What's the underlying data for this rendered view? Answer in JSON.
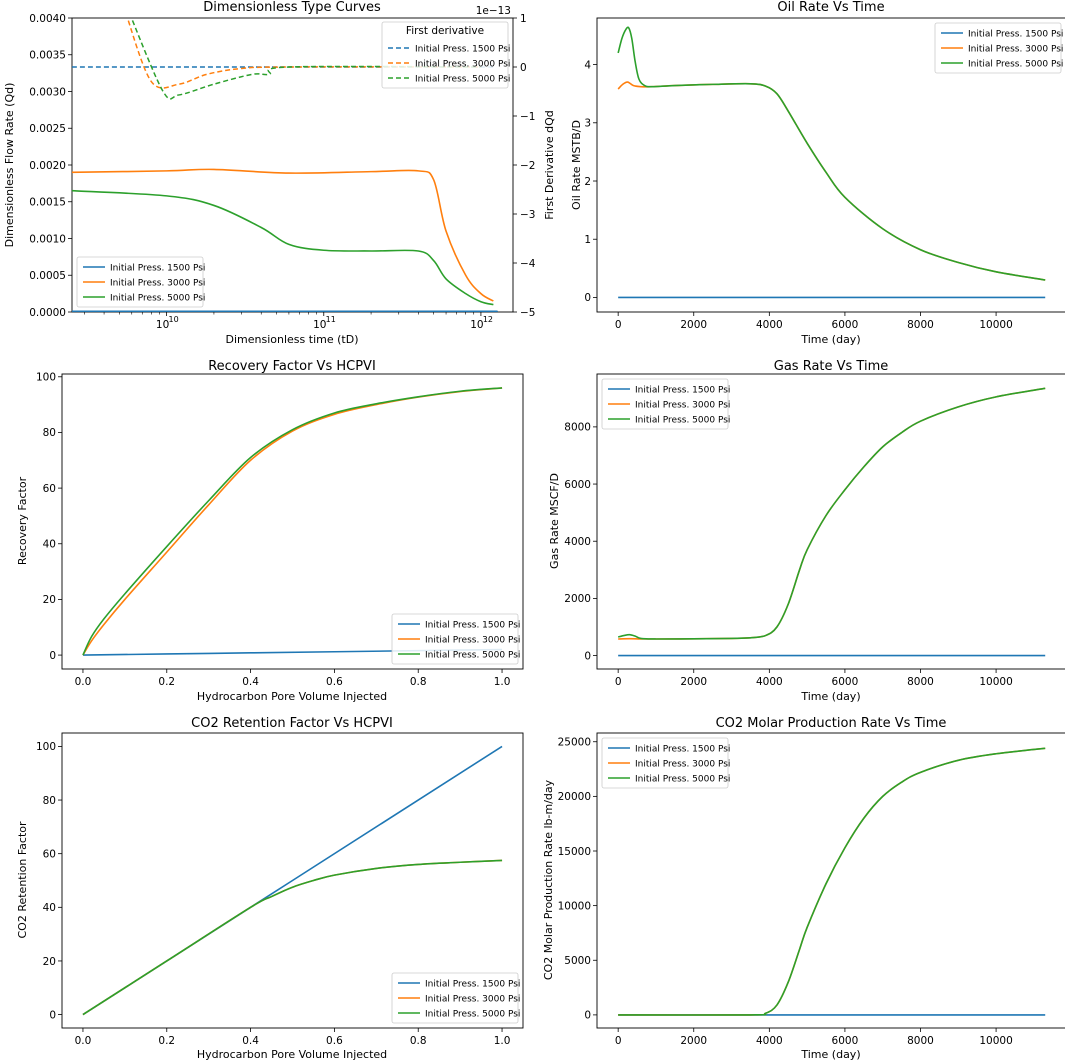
{
  "colors": {
    "p1500": "#1f77b4",
    "p3000": "#ff7f0e",
    "p5000": "#2ca02c"
  },
  "chart_data": [
    {
      "id": "type-curves",
      "type": "line",
      "title": "Dimensionless Type Curves",
      "xlabel": "Dimensionless time (tD)",
      "ylabel": "Dimensionless Flow Rate (Qd)",
      "y2label": "First Derivative dQd",
      "xscale": "log",
      "xlim": [
        2500000000,
        1600000000000
      ],
      "ylim": [
        0,
        0.004
      ],
      "y2lim": [
        -5,
        1
      ],
      "y2_offset": "1e−13",
      "xticks": [
        10000000000,
        100000000000,
        1000000000000
      ],
      "xtick_labels": [
        "10^10",
        "10^11",
        "10^12"
      ],
      "yticks": [
        0,
        0.0005,
        0.001,
        0.0015,
        0.002,
        0.0025,
        0.003,
        0.0035,
        0.004
      ],
      "ytick_labels": [
        "0.0000",
        "0.0005",
        "0.0010",
        "0.0015",
        "0.0020",
        "0.0025",
        "0.0030",
        "0.0035",
        "0.0040"
      ],
      "y2ticks": [
        -5,
        -4,
        -3,
        -2,
        -1,
        0,
        1
      ],
      "y2tick_labels": [
        "−5",
        "−4",
        "−3",
        "−2",
        "−1",
        "0",
        "1"
      ],
      "series": [
        {
          "name": "Initial Press. 1500 Psi",
          "color_key": "p1500",
          "axis": "left",
          "x": [
            2500000000,
            10000000000,
            100000000000,
            1000000000000,
            1200000000000
          ],
          "y": [
            1e-05,
            1e-05,
            1e-05,
            1e-05,
            1e-05
          ]
        },
        {
          "name": "Initial Press. 3000 Psi",
          "color_key": "p3000",
          "axis": "left",
          "x": [
            2500000000,
            10000000000,
            20000000000,
            60000000000,
            200000000000,
            400000000000,
            500000000000,
            600000000000,
            800000000000,
            1000000000000,
            1200000000000
          ],
          "y": [
            0.0019,
            0.00192,
            0.00194,
            0.00189,
            0.00191,
            0.00192,
            0.0018,
            0.0011,
            0.0005,
            0.00025,
            0.00015
          ]
        },
        {
          "name": "Initial Press. 5000 Psi",
          "color_key": "p5000",
          "axis": "left",
          "x": [
            2500000000,
            10000000000,
            20000000000,
            40000000000,
            60000000000,
            100000000000,
            200000000000,
            400000000000,
            500000000000,
            600000000000,
            800000000000,
            1000000000000,
            1200000000000
          ],
          "y": [
            0.00165,
            0.00158,
            0.00145,
            0.00115,
            0.00092,
            0.00084,
            0.00083,
            0.00083,
            0.0007,
            0.00045,
            0.00025,
            0.00014,
            0.0001
          ]
        }
      ],
      "derivative_series": [
        {
          "name": "Initial Press. 1500 Psi",
          "color_key": "p1500",
          "axis": "right",
          "x": [
            2500000000,
            1200000000000
          ],
          "y": [
            0,
            0
          ]
        },
        {
          "name": "Initial Press. 3000 Psi",
          "color_key": "p3000",
          "axis": "right",
          "x": [
            5500000000,
            8000000000,
            12000000000,
            18000000000,
            30000000000,
            60000000000,
            1000000000000
          ],
          "y": [
            1.1,
            -0.3,
            -0.35,
            -0.15,
            -0.03,
            0,
            0
          ]
        },
        {
          "name": "Initial Press. 5000 Psi",
          "color_key": "p5000",
          "axis": "right",
          "x": [
            5800000000,
            9500000000,
            12000000000,
            20000000000,
            35000000000,
            45000000000,
            60000000000,
            1000000000000
          ],
          "y": [
            1.1,
            -0.5,
            -0.57,
            -0.35,
            -0.15,
            -0.15,
            0,
            0
          ]
        }
      ],
      "legend": {
        "location": "lower-left",
        "entries": [
          "Initial Press. 1500 Psi",
          "Initial Press. 3000 Psi",
          "Initial Press. 5000 Psi"
        ]
      },
      "legend2": {
        "title": "First derivative",
        "location": "upper-right",
        "entries": [
          "Initial Press. 1500 Psi",
          "Initial Press. 3000 Psi",
          "Initial Press. 5000 Psi"
        ]
      }
    },
    {
      "id": "oil-rate",
      "type": "line",
      "title": "Oil Rate Vs Time",
      "xlabel": "Time (day)",
      "ylabel": "Oil Rate MSTB/D",
      "xlim": [
        -560,
        11850
      ],
      "ylim": [
        -0.25,
        4.8
      ],
      "xticks": [
        0,
        2000,
        4000,
        6000,
        8000,
        10000
      ],
      "xtick_labels": [
        "0",
        "2000",
        "4000",
        "6000",
        "8000",
        "10000"
      ],
      "yticks": [
        0,
        1,
        2,
        3,
        4
      ],
      "ytick_labels": [
        "0",
        "1",
        "2",
        "3",
        "4"
      ],
      "series": [
        {
          "name": "Initial Press. 1500 Psi",
          "color_key": "p1500",
          "x": [
            0,
            11300
          ],
          "y": [
            0,
            0
          ]
        },
        {
          "name": "Initial Press. 3000 Psi",
          "color_key": "p3000",
          "x": [
            0,
            120,
            250,
            400,
            600,
            900,
            1500,
            2500,
            3500,
            3900,
            4200,
            4500,
            5000,
            5500,
            6000,
            7000,
            8000,
            9000,
            10000,
            11300
          ],
          "y": [
            3.58,
            3.66,
            3.7,
            3.64,
            3.62,
            3.62,
            3.64,
            3.66,
            3.67,
            3.63,
            3.5,
            3.2,
            2.65,
            2.15,
            1.72,
            1.18,
            0.82,
            0.6,
            0.44,
            0.3
          ]
        },
        {
          "name": "Initial Press. 5000 Psi",
          "color_key": "p5000",
          "x": [
            0,
            100,
            200,
            280,
            360,
            450,
            550,
            700,
            900,
            1500,
            2500,
            3500,
            3900,
            4200,
            4500,
            5000,
            5500,
            6000,
            7000,
            8000,
            9000,
            10000,
            11300
          ],
          "y": [
            4.2,
            4.45,
            4.6,
            4.63,
            4.45,
            4.05,
            3.75,
            3.64,
            3.62,
            3.64,
            3.66,
            3.67,
            3.63,
            3.5,
            3.2,
            2.65,
            2.15,
            1.72,
            1.18,
            0.82,
            0.6,
            0.44,
            0.3
          ]
        }
      ],
      "legend": {
        "location": "upper-right",
        "entries": [
          "Initial Press. 1500 Psi",
          "Initial Press. 3000 Psi",
          "Initial Press. 5000 Psi"
        ]
      }
    },
    {
      "id": "recovery",
      "type": "line",
      "title": "Recovery Factor Vs HCPVI",
      "xlabel": "Hydrocarbon Pore Volume Injected",
      "ylabel": "Recovery Factor",
      "xlim": [
        -0.05,
        1.05
      ],
      "ylim": [
        -5,
        101
      ],
      "xticks": [
        0,
        0.2,
        0.4,
        0.6,
        0.8,
        1.0
      ],
      "xtick_labels": [
        "0.0",
        "0.2",
        "0.4",
        "0.6",
        "0.8",
        "1.0"
      ],
      "yticks": [
        0,
        20,
        40,
        60,
        80,
        100
      ],
      "ytick_labels": [
        "0",
        "20",
        "40",
        "60",
        "80",
        "100"
      ],
      "series": [
        {
          "name": "Initial Press. 1500 Psi",
          "color_key": "p1500",
          "x": [
            0,
            0.2,
            0.4,
            0.6,
            0.8,
            1.0
          ],
          "y": [
            0,
            0.4,
            0.8,
            1.2,
            1.6,
            2.0
          ]
        },
        {
          "name": "Initial Press. 3000 Psi",
          "color_key": "p3000",
          "x": [
            0,
            0.02,
            0.05,
            0.1,
            0.2,
            0.3,
            0.4,
            0.5,
            0.6,
            0.7,
            0.8,
            0.9,
            1.0
          ],
          "y": [
            0,
            5,
            11,
            20,
            37,
            54,
            70,
            80.5,
            86.5,
            90,
            92.7,
            94.7,
            96
          ]
        },
        {
          "name": "Initial Press. 5000 Psi",
          "color_key": "p5000",
          "x": [
            0,
            0.02,
            0.05,
            0.1,
            0.2,
            0.3,
            0.4,
            0.5,
            0.6,
            0.7,
            0.8,
            0.9,
            1.0
          ],
          "y": [
            0,
            6.5,
            13,
            22,
            39,
            55.5,
            71,
            81,
            87,
            90.3,
            92.8,
            94.8,
            96
          ]
        }
      ],
      "legend": {
        "location": "lower-right",
        "entries": [
          "Initial Press. 1500 Psi",
          "Initial Press. 3000 Psi",
          "Initial Press. 5000 Psi"
        ]
      }
    },
    {
      "id": "gas-rate",
      "type": "line",
      "title": "Gas Rate Vs Time",
      "xlabel": "Time (day)",
      "ylabel": "Gas Rate MSCF/D",
      "xlim": [
        -560,
        11850
      ],
      "ylim": [
        -470,
        9850
      ],
      "xticks": [
        0,
        2000,
        4000,
        6000,
        8000,
        10000
      ],
      "xtick_labels": [
        "0",
        "2000",
        "4000",
        "6000",
        "8000",
        "10000"
      ],
      "yticks": [
        0,
        2000,
        4000,
        6000,
        8000
      ],
      "ytick_labels": [
        "0",
        "2000",
        "4000",
        "6000",
        "8000"
      ],
      "series": [
        {
          "name": "Initial Press. 1500 Psi",
          "color_key": "p1500",
          "x": [
            0,
            11300
          ],
          "y": [
            0,
            0
          ]
        },
        {
          "name": "Initial Press. 3000 Psi",
          "color_key": "p3000",
          "x": [
            0,
            300,
            600,
            1000,
            2000,
            3000,
            3500,
            3900,
            4200,
            4500,
            4800,
            5000,
            5500,
            6000,
            6500,
            7000,
            7500,
            8000,
            9000,
            10000,
            11300
          ],
          "y": [
            580,
            590,
            580,
            580,
            585,
            600,
            620,
            700,
            1000,
            1800,
            3000,
            3700,
            4900,
            5800,
            6600,
            7300,
            7800,
            8200,
            8700,
            9050,
            9350
          ]
        },
        {
          "name": "Initial Press. 5000 Psi",
          "color_key": "p5000",
          "x": [
            0,
            150,
            300,
            450,
            600,
            1000,
            2000,
            3000,
            3500,
            3900,
            4200,
            4500,
            4800,
            5000,
            5500,
            6000,
            6500,
            7000,
            7500,
            8000,
            9000,
            10000,
            11300
          ],
          "y": [
            650,
            700,
            730,
            680,
            600,
            580,
            585,
            600,
            620,
            700,
            1000,
            1800,
            3000,
            3700,
            4900,
            5800,
            6600,
            7300,
            7800,
            8200,
            8700,
            9050,
            9350
          ]
        }
      ],
      "legend": {
        "location": "upper-left",
        "entries": [
          "Initial Press. 1500 Psi",
          "Initial Press. 3000 Psi",
          "Initial Press. 5000 Psi"
        ]
      }
    },
    {
      "id": "co2-retention",
      "type": "line",
      "title": "CO2 Retention Factor Vs HCPVI",
      "xlabel": "Hydrocarbon Pore Volume Injected",
      "ylabel": "CO2 Retention Factor",
      "xlim": [
        -0.05,
        1.05
      ],
      "ylim": [
        -5,
        105
      ],
      "xticks": [
        0,
        0.2,
        0.4,
        0.6,
        0.8,
        1.0
      ],
      "xtick_labels": [
        "0.0",
        "0.2",
        "0.4",
        "0.6",
        "0.8",
        "1.0"
      ],
      "yticks": [
        0,
        20,
        40,
        60,
        80,
        100
      ],
      "ytick_labels": [
        "0",
        "20",
        "40",
        "60",
        "80",
        "100"
      ],
      "series": [
        {
          "name": "Initial Press. 1500 Psi",
          "color_key": "p1500",
          "x": [
            0,
            1.0
          ],
          "y": [
            0,
            100
          ]
        },
        {
          "name": "Initial Press. 3000 Psi",
          "color_key": "p3000",
          "x": [
            0,
            0.2,
            0.4,
            0.45,
            0.5,
            0.55,
            0.6,
            0.7,
            0.8,
            0.9,
            1.0
          ],
          "y": [
            0,
            20,
            40,
            44,
            47.5,
            50,
            52,
            54.5,
            56,
            56.8,
            57.5
          ]
        },
        {
          "name": "Initial Press. 5000 Psi",
          "color_key": "p5000",
          "x": [
            0,
            0.2,
            0.4,
            0.45,
            0.5,
            0.55,
            0.6,
            0.7,
            0.8,
            0.9,
            1.0
          ],
          "y": [
            0,
            20,
            40,
            44,
            47.5,
            50,
            52,
            54.5,
            56,
            56.8,
            57.5
          ]
        }
      ],
      "legend": {
        "location": "lower-right",
        "entries": [
          "Initial Press. 1500 Psi",
          "Initial Press. 3000 Psi",
          "Initial Press. 5000 Psi"
        ]
      }
    },
    {
      "id": "co2-molar",
      "type": "line",
      "title": "CO2 Molar Production Rate Vs Time",
      "xlabel": "Time (day)",
      "ylabel": "CO2 Molar Production Rate  lb-m/day",
      "xlim": [
        -560,
        11850
      ],
      "ylim": [
        -1200,
        25800
      ],
      "xticks": [
        0,
        2000,
        4000,
        6000,
        8000,
        10000
      ],
      "xtick_labels": [
        "0",
        "2000",
        "4000",
        "6000",
        "8000",
        "10000"
      ],
      "yticks": [
        0,
        5000,
        10000,
        15000,
        20000,
        25000
      ],
      "ytick_labels": [
        "0",
        "5000",
        "10000",
        "15000",
        "20000",
        "25000"
      ],
      "series": [
        {
          "name": "Initial Press. 1500 Psi",
          "color_key": "p1500",
          "x": [
            0,
            11300
          ],
          "y": [
            0,
            0
          ]
        },
        {
          "name": "Initial Press. 3000 Psi",
          "color_key": "p3000",
          "x": [
            0,
            3500,
            3900,
            4200,
            4500,
            4800,
            5000,
            5500,
            6000,
            6500,
            7000,
            7500,
            8000,
            9000,
            10000,
            11300
          ],
          "y": [
            0,
            0,
            150,
            900,
            3000,
            6000,
            8000,
            12000,
            15300,
            18000,
            20000,
            21300,
            22200,
            23300,
            23900,
            24400
          ]
        },
        {
          "name": "Initial Press. 5000 Psi",
          "color_key": "p5000",
          "x": [
            0,
            3500,
            3900,
            4200,
            4500,
            4800,
            5000,
            5500,
            6000,
            6500,
            7000,
            7500,
            8000,
            9000,
            10000,
            11300
          ],
          "y": [
            0,
            0,
            150,
            900,
            3000,
            6000,
            8000,
            12000,
            15300,
            18000,
            20000,
            21300,
            22200,
            23300,
            23900,
            24400
          ]
        }
      ],
      "legend": {
        "location": "upper-left",
        "entries": [
          "Initial Press. 1500 Psi",
          "Initial Press. 3000 Psi",
          "Initial Press. 5000 Psi"
        ]
      }
    }
  ]
}
